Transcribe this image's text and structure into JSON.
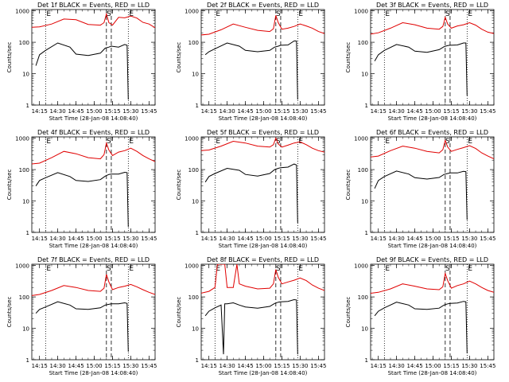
{
  "start_time_label": "Start Time (28-Jan-08 14:08:40)",
  "ylabel": "Counts/sec",
  "x_tick_labels": [
    "14:15",
    "14:30",
    "14:45",
    "15:00",
    "15:15",
    "15:30",
    "15:45"
  ],
  "y_tick_labels": [
    "1",
    "10",
    "100",
    "1000"
  ],
  "marker_labels": {
    "E": "E",
    "S": "S"
  },
  "colors": {
    "events": "#000000",
    "lld": "#e00000"
  },
  "chart_data": [
    {
      "type": "line",
      "title": "Det 1f BLACK = Events, RED = LLD",
      "ylog": true,
      "xlim": [
        "14:08:40",
        "15:50:00"
      ],
      "ylim": [
        1,
        1100
      ],
      "dotted_markers": [
        "14:20",
        "15:28"
      ],
      "dashed_markers": [
        "15:10",
        "15:14"
      ],
      "series": [
        {
          "color": "red",
          "x": [
            "14:08",
            "14:15",
            "14:25",
            "14:35",
            "14:45",
            "14:55",
            "15:05",
            "15:08",
            "15:10",
            "15:12",
            "15:15",
            "15:20",
            "15:25",
            "15:30",
            "15:35",
            "15:40",
            "15:45",
            "15:50"
          ],
          "values": [
            300,
            310,
            380,
            550,
            520,
            370,
            350,
            420,
            800,
            420,
            350,
            620,
            600,
            680,
            590,
            430,
            380,
            290
          ]
        },
        {
          "color": "black",
          "x": [
            "14:12",
            "14:15",
            "14:20",
            "14:30",
            "14:40",
            "14:45",
            "14:55",
            "15:05",
            "15:09",
            "15:12",
            "15:14",
            "15:20",
            "15:25",
            "15:27",
            "15:28"
          ],
          "values": [
            18,
            40,
            55,
            95,
            70,
            42,
            38,
            45,
            65,
            70,
            75,
            70,
            85,
            80,
            1.5
          ]
        }
      ]
    },
    {
      "type": "line",
      "title": "Det 2f BLACK = Events, RED = LLD",
      "ylog": true,
      "xlim": [
        "14:08:40",
        "15:50:00"
      ],
      "ylim": [
        1,
        1100
      ],
      "dotted_markers": [
        "14:20",
        "15:28"
      ],
      "dashed_markers": [
        "15:10",
        "15:14"
      ],
      "series": [
        {
          "color": "red",
          "x": [
            "14:08",
            "14:15",
            "14:25",
            "14:35",
            "14:45",
            "14:55",
            "15:05",
            "15:08",
            "15:10",
            "15:12",
            "15:15",
            "15:20",
            "15:25",
            "15:30",
            "15:35",
            "15:40",
            "15:45",
            "15:50"
          ],
          "values": [
            170,
            180,
            250,
            380,
            300,
            240,
            220,
            270,
            720,
            420,
            260,
            280,
            320,
            380,
            330,
            280,
            220,
            190
          ]
        },
        {
          "color": "black",
          "x": [
            "14:12",
            "14:15",
            "14:20",
            "14:30",
            "14:40",
            "14:45",
            "14:55",
            "15:05",
            "15:09",
            "15:12",
            "15:14",
            "15:20",
            "15:25",
            "15:27",
            "15:28"
          ],
          "values": [
            40,
            50,
            62,
            95,
            75,
            55,
            50,
            55,
            70,
            75,
            80,
            82,
            110,
            110,
            1.5
          ]
        }
      ]
    },
    {
      "type": "line",
      "title": "Det 3f BLACK = Events, RED = LLD",
      "ylog": true,
      "xlim": [
        "14:08:40",
        "15:50:00"
      ],
      "ylim": [
        1,
        1100
      ],
      "dotted_markers": [
        "14:20",
        "15:28"
      ],
      "dashed_markers": [
        "15:10",
        "15:14"
      ],
      "series": [
        {
          "color": "red",
          "x": [
            "14:08",
            "14:15",
            "14:25",
            "14:35",
            "14:45",
            "14:55",
            "15:05",
            "15:08",
            "15:10",
            "15:12",
            "15:15",
            "15:20",
            "15:25",
            "15:30",
            "15:35",
            "15:40",
            "15:45",
            "15:50"
          ],
          "values": [
            180,
            200,
            280,
            420,
            360,
            280,
            260,
            320,
            620,
            380,
            280,
            330,
            360,
            420,
            350,
            260,
            210,
            190
          ]
        },
        {
          "color": "black",
          "x": [
            "14:12",
            "14:15",
            "14:20",
            "14:30",
            "14:40",
            "14:45",
            "14:55",
            "15:05",
            "15:09",
            "15:12",
            "15:14",
            "15:20",
            "15:25",
            "15:27",
            "15:28"
          ],
          "values": [
            25,
            40,
            55,
            85,
            70,
            52,
            48,
            58,
            72,
            78,
            80,
            82,
            95,
            95,
            2
          ]
        }
      ]
    },
    {
      "type": "line",
      "title": "Det 4f BLACK = Events, RED = LLD",
      "ylog": true,
      "xlim": [
        "14:08:40",
        "15:50:00"
      ],
      "ylim": [
        1,
        1100
      ],
      "dotted_markers": [
        "14:20",
        "15:28"
      ],
      "dashed_markers": [
        "15:10",
        "15:14"
      ],
      "series": [
        {
          "color": "red",
          "x": [
            "14:08",
            "14:15",
            "14:25",
            "14:35",
            "14:45",
            "14:55",
            "15:05",
            "15:08",
            "15:10",
            "15:12",
            "15:15",
            "15:20",
            "15:25",
            "15:30",
            "15:35",
            "15:40",
            "15:45",
            "15:50"
          ],
          "values": [
            150,
            160,
            240,
            380,
            320,
            240,
            220,
            300,
            700,
            420,
            280,
            360,
            400,
            480,
            380,
            280,
            220,
            180
          ]
        },
        {
          "color": "black",
          "x": [
            "14:12",
            "14:15",
            "14:20",
            "14:30",
            "14:40",
            "14:45",
            "14:55",
            "15:05",
            "15:09",
            "15:12",
            "15:14",
            "15:20",
            "15:25",
            "15:27",
            "15:28"
          ],
          "values": [
            30,
            45,
            55,
            80,
            60,
            45,
            42,
            48,
            62,
            70,
            72,
            72,
            82,
            80,
            1.5
          ]
        }
      ]
    },
    {
      "type": "line",
      "title": "Det 5f BLACK = Events, RED = LLD",
      "ylog": true,
      "xlim": [
        "14:08:40",
        "15:50:00"
      ],
      "ylim": [
        1,
        1100
      ],
      "dotted_markers": [
        "14:20",
        "15:28"
      ],
      "dashed_markers": [
        "15:10",
        "15:14"
      ],
      "series": [
        {
          "color": "red",
          "x": [
            "14:08",
            "14:15",
            "14:25",
            "14:35",
            "14:45",
            "14:55",
            "15:05",
            "15:08",
            "15:10",
            "15:12",
            "15:15",
            "15:20",
            "15:25",
            "15:30",
            "15:35",
            "15:40",
            "15:45",
            "15:50"
          ],
          "values": [
            400,
            420,
            560,
            800,
            700,
            560,
            520,
            620,
            1000,
            650,
            520,
            600,
            700,
            760,
            620,
            480,
            400,
            360
          ]
        },
        {
          "color": "black",
          "x": [
            "14:12",
            "14:15",
            "14:20",
            "14:30",
            "14:40",
            "14:45",
            "14:55",
            "15:05",
            "15:09",
            "15:12",
            "15:14",
            "15:20",
            "15:25",
            "15:27",
            "15:28"
          ],
          "values": [
            40,
            60,
            75,
            110,
            95,
            70,
            62,
            75,
            100,
            110,
            115,
            120,
            150,
            140,
            2
          ]
        }
      ]
    },
    {
      "type": "line",
      "title": "Det 6f BLACK = Events, RED = LLD",
      "ylog": true,
      "xlim": [
        "14:08:40",
        "15:50:00"
      ],
      "ylim": [
        1,
        1100
      ],
      "dotted_markers": [
        "14:20",
        "15:28"
      ],
      "dashed_markers": [
        "15:10",
        "15:14"
      ],
      "series": [
        {
          "color": "red",
          "x": [
            "14:08",
            "14:15",
            "14:25",
            "14:35",
            "14:45",
            "14:55",
            "15:05",
            "15:08",
            "15:10",
            "15:12",
            "15:15",
            "15:20",
            "15:25",
            "15:30",
            "15:35",
            "15:40",
            "15:45",
            "15:50"
          ],
          "values": [
            250,
            270,
            400,
            560,
            480,
            380,
            340,
            430,
            850,
            520,
            380,
            440,
            500,
            580,
            470,
            340,
            270,
            220
          ]
        },
        {
          "color": "black",
          "x": [
            "14:12",
            "14:15",
            "14:20",
            "14:30",
            "14:40",
            "14:45",
            "14:55",
            "15:05",
            "15:09",
            "15:12",
            "15:14",
            "15:20",
            "15:25",
            "15:27",
            "15:28"
          ],
          "values": [
            25,
            45,
            60,
            90,
            72,
            55,
            50,
            56,
            70,
            75,
            78,
            78,
            88,
            86,
            2.5
          ]
        }
      ]
    },
    {
      "type": "line",
      "title": "Det 7f BLACK = Events, RED = LLD",
      "ylog": true,
      "xlim": [
        "14:08:40",
        "15:50:00"
      ],
      "ylim": [
        1,
        1100
      ],
      "dotted_markers": [
        "14:20",
        "15:28"
      ],
      "dashed_markers": [
        "15:10",
        "15:14"
      ],
      "series": [
        {
          "color": "red",
          "x": [
            "14:08",
            "14:15",
            "14:25",
            "14:35",
            "14:45",
            "14:55",
            "15:05",
            "15:08",
            "15:10",
            "15:12",
            "15:15",
            "15:20",
            "15:25",
            "15:30",
            "15:35",
            "15:40",
            "15:45",
            "15:50"
          ],
          "values": [
            110,
            120,
            160,
            230,
            200,
            160,
            150,
            190,
            520,
            300,
            170,
            200,
            220,
            250,
            210,
            170,
            140,
            120
          ]
        },
        {
          "color": "black",
          "x": [
            "14:12",
            "14:15",
            "14:20",
            "14:30",
            "14:40",
            "14:45",
            "14:55",
            "15:05",
            "15:09",
            "15:12",
            "15:14",
            "15:20",
            "15:25",
            "15:27",
            "15:28"
          ],
          "values": [
            30,
            40,
            48,
            70,
            55,
            42,
            40,
            45,
            55,
            58,
            60,
            60,
            65,
            62,
            1.8
          ]
        }
      ]
    },
    {
      "type": "line",
      "title": "Det 8f BLACK = Events, RED = LLD",
      "ylog": true,
      "xlim": [
        "14:08:40",
        "15:50:00"
      ],
      "ylim": [
        1,
        1100
      ],
      "dotted_markers": [
        "14:20",
        "15:28"
      ],
      "dashed_markers": [
        "15:10",
        "15:14"
      ],
      "series": [
        {
          "color": "red",
          "x": [
            "14:08",
            "14:15",
            "14:20",
            "14:22",
            "14:28",
            "14:30",
            "14:35",
            "14:38",
            "14:40",
            "14:45",
            "14:55",
            "15:05",
            "15:08",
            "15:10",
            "15:12",
            "15:15",
            "15:20",
            "15:25",
            "15:30",
            "15:35",
            "15:40",
            "15:45",
            "15:50"
          ],
          "values": [
            130,
            150,
            200,
            1100,
            1100,
            200,
            200,
            1100,
            260,
            220,
            180,
            190,
            260,
            750,
            420,
            260,
            300,
            340,
            400,
            330,
            240,
            190,
            160
          ]
        },
        {
          "color": "black",
          "x": [
            "14:12",
            "14:15",
            "14:20",
            "14:25",
            "14:27",
            "14:28",
            "14:30",
            "14:35",
            "14:40",
            "14:45",
            "14:55",
            "15:05",
            "15:09",
            "15:12",
            "15:14",
            "15:20",
            "15:25",
            "15:27",
            "15:28"
          ],
          "values": [
            25,
            35,
            45,
            55,
            1.5,
            60,
            60,
            65,
            55,
            48,
            44,
            50,
            62,
            68,
            70,
            72,
            82,
            80,
            1.5
          ]
        }
      ]
    },
    {
      "type": "line",
      "title": "Det 9f BLACK = Events, RED = LLD",
      "ylog": true,
      "xlim": [
        "14:08:40",
        "15:50:00"
      ],
      "ylim": [
        1,
        1100
      ],
      "dotted_markers": [
        "14:20",
        "15:28"
      ],
      "dashed_markers": [
        "15:10",
        "15:14"
      ],
      "series": [
        {
          "color": "red",
          "x": [
            "14:08",
            "14:15",
            "14:25",
            "14:35",
            "14:45",
            "14:55",
            "15:05",
            "15:08",
            "15:10",
            "15:12",
            "15:15",
            "15:20",
            "15:25",
            "15:30",
            "15:35",
            "15:40",
            "15:45",
            "15:50"
          ],
          "values": [
            130,
            140,
            180,
            260,
            220,
            180,
            170,
            210,
            560,
            330,
            190,
            230,
            260,
            320,
            260,
            200,
            160,
            140
          ]
        },
        {
          "color": "black",
          "x": [
            "14:12",
            "14:15",
            "14:20",
            "14:30",
            "14:40",
            "14:45",
            "14:55",
            "15:05",
            "15:09",
            "15:12",
            "15:14",
            "15:20",
            "15:25",
            "15:27",
            "15:28"
          ],
          "values": [
            25,
            35,
            45,
            68,
            55,
            42,
            40,
            44,
            55,
            60,
            62,
            64,
            72,
            70,
            1.6
          ]
        }
      ]
    }
  ]
}
